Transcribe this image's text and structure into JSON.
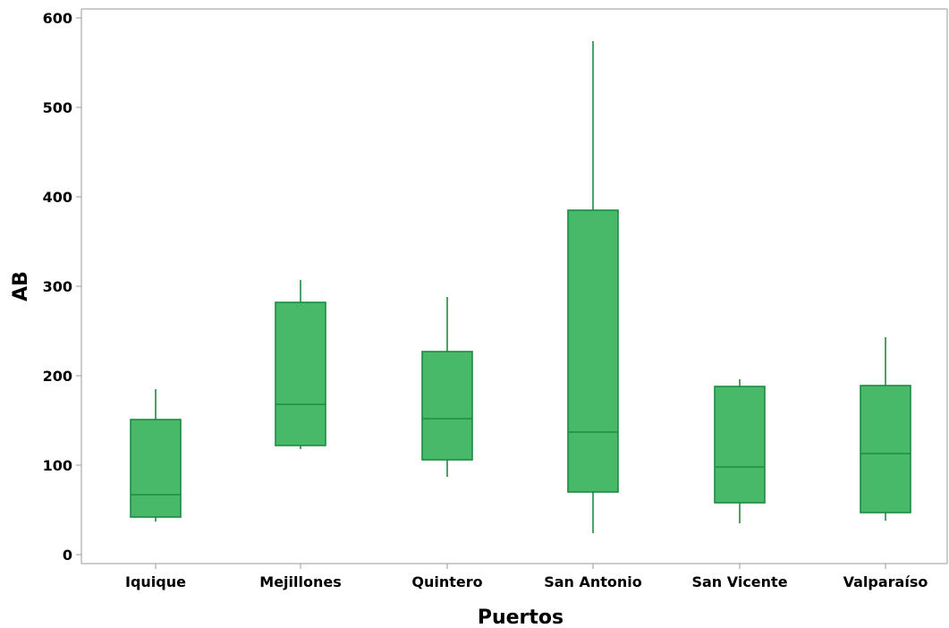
{
  "chart_data": {
    "type": "boxplot",
    "title": "",
    "xlabel": "Puertos",
    "ylabel": "AB",
    "ylim": [
      0,
      600
    ],
    "yticks": [
      0,
      100,
      200,
      300,
      400,
      500,
      600
    ],
    "grid": false,
    "colors": {
      "box_fill": "#48b969",
      "box_stroke": "#1f8a3f",
      "axis": "#9a9a9a"
    },
    "categories": [
      "Iquique",
      "Mejillones",
      "Quintero",
      "San Antonio",
      "San Vicente",
      "Valparaíso"
    ],
    "boxes": [
      {
        "category": "Iquique",
        "whisker_low": 37,
        "q1": 42,
        "median": 67,
        "q3": 151,
        "whisker_high": 185
      },
      {
        "category": "Mejillones",
        "whisker_low": 118,
        "q1": 122,
        "median": 168,
        "q3": 282,
        "whisker_high": 307
      },
      {
        "category": "Quintero",
        "whisker_low": 87,
        "q1": 106,
        "median": 152,
        "q3": 227,
        "whisker_high": 288
      },
      {
        "category": "San Antonio",
        "whisker_low": 24,
        "q1": 70,
        "median": 137,
        "q3": 385,
        "whisker_high": 574
      },
      {
        "category": "San Vicente",
        "whisker_low": 35,
        "q1": 58,
        "median": 98,
        "q3": 188,
        "whisker_high": 196
      },
      {
        "category": "Valparaíso",
        "whisker_low": 38,
        "q1": 47,
        "median": 113,
        "q3": 189,
        "whisker_high": 243
      }
    ]
  }
}
